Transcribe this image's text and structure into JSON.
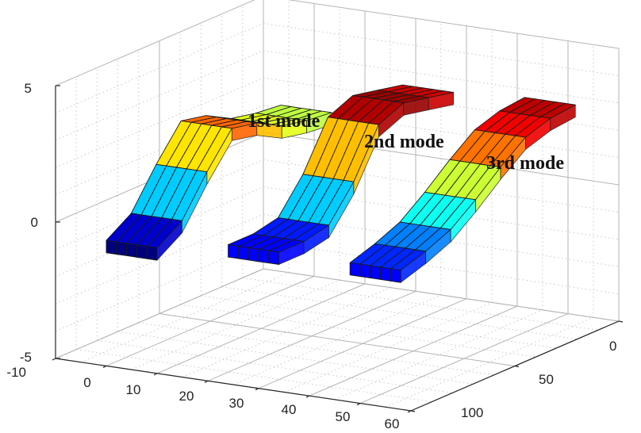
{
  "chart_data": {
    "type": "surface",
    "title": "",
    "xlabel": "",
    "ylabel": "",
    "zlabel": "",
    "grid": true,
    "axes": {
      "x": {
        "range": [
          -10,
          60
        ],
        "ticks": [
          "-10",
          "0",
          "10",
          "20",
          "30",
          "40",
          "50",
          "60"
        ]
      },
      "y": {
        "range": [
          0,
          100
        ],
        "ticks": [
          "0",
          "50",
          "100"
        ]
      },
      "z": {
        "range": [
          -5,
          5
        ],
        "ticks": [
          "-5",
          "0",
          "5"
        ]
      }
    },
    "colormap": [
      "#00007f",
      "#0000ff",
      "#007fff",
      "#00ffff",
      "#7fff7f",
      "#ffff00",
      "#ff7f00",
      "#ff0000",
      "#7f0000"
    ],
    "series": [
      {
        "name": "1st mode",
        "x_range": [
          0,
          10
        ],
        "y": [
          0,
          12,
          24,
          36,
          48,
          60,
          72,
          84
        ],
        "z": [
          -0.4,
          0.2,
          1.6,
          2.8,
          2.6,
          2.1,
          1.9,
          1.8
        ]
      },
      {
        "name": "2nd mode",
        "x_range": [
          24,
          34
        ],
        "y": [
          0,
          12,
          24,
          36,
          48,
          60,
          72,
          84
        ],
        "z": [
          0.1,
          0.1,
          0.3,
          1.5,
          3.2,
          3.6,
          3.4,
          3.2
        ]
      },
      {
        "name": "3rd mode",
        "x_range": [
          48,
          58
        ],
        "y": [
          0,
          12,
          24,
          36,
          48,
          60,
          72,
          84
        ],
        "z": [
          0.1,
          0.4,
          0.8,
          1.5,
          2.3,
          3.0,
          3.3,
          3.4
        ]
      }
    ]
  }
}
